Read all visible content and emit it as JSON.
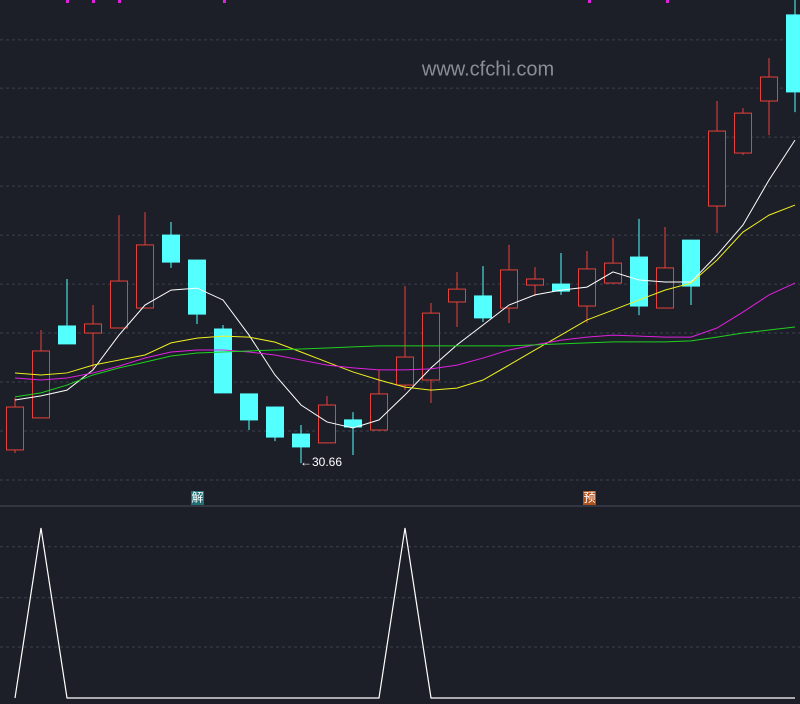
{
  "chart_data": [
    {
      "type": "candlestick",
      "watermark": "www.cfchi.com",
      "annotation": "←30.66",
      "signals": [
        "解",
        "预"
      ],
      "up_color": "#e8403a",
      "down_color": "#54ffff",
      "ylim": [
        29,
        49
      ],
      "ygrid": [
        47.42,
        45.51,
        43.57,
        41.63,
        39.69,
        37.75,
        35.81,
        33.87,
        31.93,
        29.99
      ],
      "grid": true,
      "open": [
        31.18,
        32.45,
        36.09,
        35.81,
        36.01,
        36.8,
        39.69,
        38.7,
        35.97,
        33.4,
        32.88,
        31.81,
        31.46,
        32.37,
        31.97,
        33.75,
        33.95,
        37.04,
        37.28,
        36.8,
        37.71,
        37.75,
        36.88,
        37.79,
        38.82,
        36.8,
        39.49,
        40.84,
        42.94,
        45.0,
        48.41
      ],
      "high": [
        33.24,
        35.93,
        37.95,
        36.92,
        40.48,
        40.6,
        40.21,
        38.7,
        36.13,
        33.4,
        32.88,
        32.17,
        33.32,
        32.68,
        34.35,
        37.67,
        37.0,
        38.23,
        38.46,
        39.3,
        38.42,
        38.98,
        39.06,
        39.57,
        40.33,
        40.01,
        39.49,
        45.0,
        44.72,
        46.7,
        49.0
      ],
      "low": [
        31.06,
        32.45,
        35.38,
        34.35,
        36.01,
        36.8,
        38.39,
        36.17,
        33.44,
        31.97,
        31.53,
        30.66,
        31.46,
        30.98,
        31.97,
        33.55,
        33.04,
        36.05,
        36.25,
        36.21,
        37.28,
        37.32,
        36.21,
        37.79,
        36.52,
        36.8,
        36.92,
        39.77,
        42.86,
        43.65,
        44.56
      ],
      "close": [
        32.88,
        35.1,
        35.38,
        36.17,
        37.87,
        39.3,
        38.62,
        36.56,
        33.44,
        32.37,
        31.69,
        31.3,
        32.96,
        32.09,
        33.4,
        34.86,
        36.6,
        37.55,
        36.41,
        38.31,
        37.95,
        37.47,
        38.35,
        38.58,
        36.88,
        38.39,
        37.67,
        43.81,
        44.52,
        45.95,
        45.36
      ],
      "lines": [
        {
          "color": "#ffffff",
          "values": [
            33.16,
            33.32,
            33.55,
            34.35,
            35.73,
            36.92,
            37.51,
            37.59,
            37.12,
            35.73,
            34.15,
            32.96,
            32.29,
            32.05,
            32.37,
            33.36,
            34.43,
            35.34,
            36.13,
            36.92,
            37.32,
            37.51,
            37.63,
            38.23,
            37.91,
            37.83,
            37.83,
            38.9,
            40.09,
            41.87,
            43.45
          ]
        },
        {
          "color": "#f0f020",
          "values": [
            34.23,
            34.15,
            34.23,
            34.54,
            34.74,
            34.94,
            35.42,
            35.61,
            35.69,
            35.65,
            35.45,
            35.06,
            34.66,
            34.27,
            33.95,
            33.67,
            33.55,
            33.63,
            33.95,
            34.54,
            35.14,
            35.73,
            36.33,
            36.72,
            37.12,
            37.51,
            37.79,
            38.7,
            39.81,
            40.48,
            40.88
          ]
        },
        {
          "color": "#e020e0",
          "values": [
            34.03,
            33.95,
            34.03,
            34.23,
            34.5,
            34.82,
            35.06,
            35.14,
            35.14,
            35.06,
            34.94,
            34.74,
            34.54,
            34.43,
            34.35,
            34.35,
            34.39,
            34.54,
            34.82,
            35.14,
            35.34,
            35.53,
            35.65,
            35.73,
            35.69,
            35.65,
            35.65,
            36.01,
            36.64,
            37.32,
            37.79
          ]
        },
        {
          "color": "#20d020",
          "values": [
            33.28,
            33.44,
            33.75,
            34.15,
            34.43,
            34.66,
            34.9,
            35.02,
            35.06,
            35.1,
            35.14,
            35.18,
            35.22,
            35.26,
            35.3,
            35.3,
            35.3,
            35.3,
            35.3,
            35.3,
            35.34,
            35.38,
            35.42,
            35.46,
            35.46,
            35.46,
            35.5,
            35.65,
            35.81,
            35.93,
            36.05
          ]
        }
      ]
    },
    {
      "type": "line",
      "color": "#ffffff",
      "ylim": [
        0,
        1
      ],
      "ygrid": [
        0.3,
        0.59,
        0.89
      ],
      "grid": true,
      "values": [
        0,
        1,
        0,
        0,
        0,
        0,
        0,
        0,
        0,
        0,
        0,
        0,
        0,
        0,
        0,
        1,
        0,
        0,
        0,
        0,
        0,
        0,
        0,
        0,
        0,
        0,
        0,
        0,
        0,
        0,
        0
      ]
    }
  ]
}
